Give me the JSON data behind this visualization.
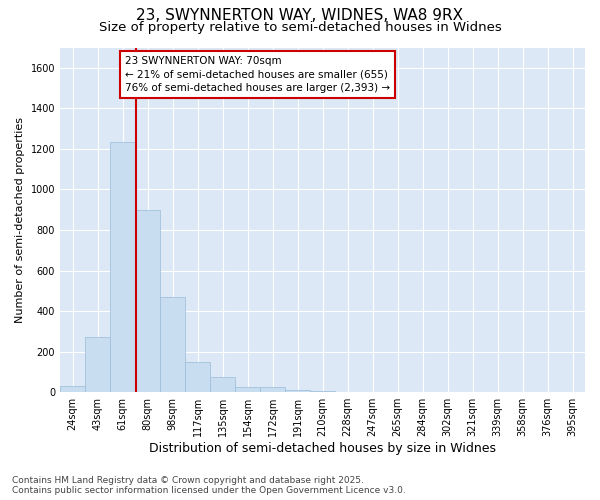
{
  "title1": "23, SWYNNERTON WAY, WIDNES, WA8 9RX",
  "title2": "Size of property relative to semi-detached houses in Widnes",
  "xlabel": "Distribution of semi-detached houses by size in Widnes",
  "ylabel": "Number of semi-detached properties",
  "categories": [
    "24sqm",
    "43sqm",
    "61sqm",
    "80sqm",
    "98sqm",
    "117sqm",
    "135sqm",
    "154sqm",
    "172sqm",
    "191sqm",
    "210sqm",
    "228sqm",
    "247sqm",
    "265sqm",
    "284sqm",
    "302sqm",
    "321sqm",
    "339sqm",
    "358sqm",
    "376sqm",
    "395sqm"
  ],
  "values": [
    30,
    270,
    1235,
    900,
    470,
    150,
    75,
    25,
    25,
    10,
    5,
    3,
    2,
    1,
    1,
    0,
    0,
    0,
    0,
    0,
    0
  ],
  "bar_color": "#c8ddf0",
  "bar_edge_color": "#9abcd8",
  "vline_color": "#cc0000",
  "vline_position": 2.55,
  "annotation_text": "23 SWYNNERTON WAY: 70sqm\n← 21% of semi-detached houses are smaller (655)\n76% of semi-detached houses are larger (2,393) →",
  "annotation_box_facecolor": "#ffffff",
  "annotation_box_edgecolor": "#cc0000",
  "ylim": [
    0,
    1700
  ],
  "yticks": [
    0,
    200,
    400,
    600,
    800,
    1000,
    1200,
    1400,
    1600
  ],
  "bg_color": "#ffffff",
  "plot_bg_color": "#dce8f5",
  "grid_color": "#ffffff",
  "footer": "Contains HM Land Registry data © Crown copyright and database right 2025.\nContains public sector information licensed under the Open Government Licence v3.0.",
  "title1_fontsize": 11,
  "title2_fontsize": 9.5,
  "tick_fontsize": 7,
  "xlabel_fontsize": 9,
  "ylabel_fontsize": 8,
  "footer_fontsize": 6.5,
  "annotation_fontsize": 7.5
}
